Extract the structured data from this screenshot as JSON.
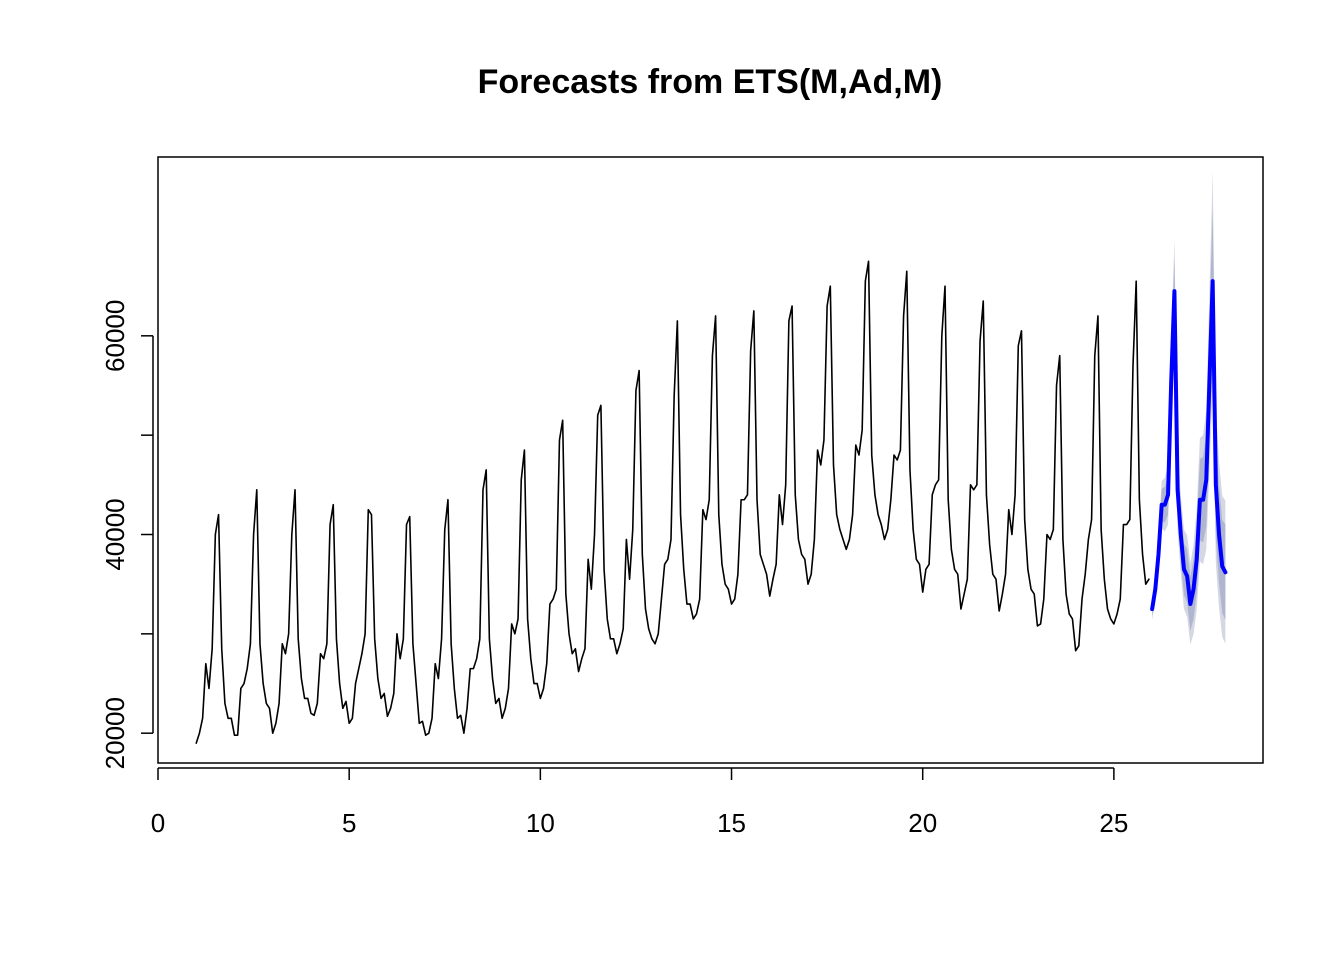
{
  "chart_data": {
    "type": "line",
    "title": "Forecasts from ETS(M,Ad,M)",
    "xlabel": "",
    "ylabel": "",
    "xlim": [
      0,
      28.9
    ],
    "ylim": [
      17000,
      78000
    ],
    "x_ticks": [
      0,
      5,
      10,
      15,
      20,
      25
    ],
    "y_ticks": [
      20000,
      40000,
      60000
    ],
    "y_tick_labels": [
      "20000",
      "40000",
      "60000"
    ],
    "grid": false,
    "legend": "none",
    "series": [
      {
        "role": "observed",
        "color": "#000000",
        "start": 1,
        "frequency": 12,
        "values": [
          19000,
          20000,
          21500,
          27000,
          24500,
          28500,
          40000,
          42000,
          28500,
          23000,
          21500,
          21500,
          19800,
          19800,
          24500,
          25000,
          26500,
          29000,
          40000,
          44500,
          29000,
          25000,
          23000,
          22500,
          20000,
          21000,
          23000,
          29000,
          28000,
          30000,
          40000,
          44500,
          29500,
          25500,
          23500,
          23500,
          22000,
          21800,
          23000,
          28000,
          27500,
          29000,
          41000,
          43000,
          29500,
          25000,
          22500,
          23200,
          21000,
          21500,
          25000,
          26500,
          28000,
          30000,
          42500,
          42000,
          29500,
          25500,
          23500,
          24000,
          21700,
          22500,
          24000,
          30000,
          27500,
          29500,
          41000,
          41800,
          29000,
          25000,
          21000,
          21200,
          19800,
          20000,
          21500,
          27000,
          25500,
          29500,
          40500,
          43500,
          29000,
          24500,
          21500,
          21800,
          20000,
          22500,
          26500,
          26500,
          27500,
          29500,
          44500,
          46500,
          29500,
          25500,
          23000,
          23500,
          21500,
          22500,
          24500,
          31000,
          30000,
          31500,
          45500,
          48500,
          31500,
          27500,
          25000,
          25000,
          23500,
          24500,
          27000,
          33000,
          33500,
          34500,
          49500,
          51500,
          34000,
          30000,
          28000,
          28500,
          26200,
          27500,
          28500,
          37500,
          34500,
          40000,
          52000,
          53000,
          36500,
          31500,
          29500,
          29500,
          28000,
          29000,
          30500,
          39500,
          35500,
          40500,
          54500,
          56500,
          38000,
          32500,
          30500,
          29500,
          29000,
          30000,
          33500,
          37000,
          37500,
          39500,
          54000,
          61500,
          42000,
          36500,
          33000,
          33000,
          31500,
          32000,
          33500,
          42500,
          41500,
          43500,
          58000,
          62000,
          42000,
          37000,
          35000,
          34500,
          33000,
          33500,
          36000,
          43500,
          43500,
          44000,
          58500,
          62500,
          43500,
          38000,
          37000,
          36000,
          33800,
          35500,
          37000,
          44000,
          41000,
          45000,
          61500,
          63000,
          44000,
          39500,
          38000,
          37500,
          35000,
          36000,
          39500,
          48500,
          47000,
          49500,
          63000,
          65000,
          47000,
          42000,
          40500,
          39500,
          38500,
          39500,
          42000,
          49000,
          48000,
          50500,
          65500,
          67500,
          48000,
          44000,
          42000,
          41000,
          39500,
          40500,
          43500,
          48000,
          47500,
          48500,
          62000,
          66500,
          46500,
          40500,
          37500,
          37000,
          34200,
          36500,
          37000,
          44000,
          45000,
          45500,
          60000,
          65000,
          43500,
          38500,
          36500,
          36000,
          32500,
          34000,
          35500,
          45000,
          44500,
          45000,
          59500,
          63500,
          44000,
          39000,
          36000,
          35500,
          32300,
          34000,
          36000,
          42500,
          40000,
          44000,
          59000,
          60500,
          41500,
          36500,
          34500,
          34000,
          30800,
          31000,
          33500,
          40000,
          39500,
          40500,
          55000,
          58000,
          39500,
          34000,
          32000,
          31500,
          28300,
          28800,
          33500,
          36000,
          39500,
          41500,
          58000,
          62000,
          40500,
          35500,
          32500,
          31500,
          31000,
          32000,
          33500,
          41000,
          41000,
          41500,
          57000,
          65500,
          43500,
          38000,
          35000,
          35500
        ]
      },
      {
        "role": "forecast",
        "color": "#0000FF",
        "start": 26,
        "frequency": 12,
        "values": [
          32500,
          34500,
          38000,
          43000,
          43000,
          44000,
          55500,
          64500,
          44500,
          40000,
          36500,
          35800,
          33000,
          34500,
          37500,
          43500,
          43500,
          45500,
          55500,
          65500,
          45000,
          40000,
          36800,
          36200
        ]
      },
      {
        "role": "prediction-80",
        "color": "#B0B6D0",
        "start": 26,
        "frequency": 12,
        "lower": [
          31800,
          33600,
          36800,
          41400,
          41200,
          42000,
          52700,
          61000,
          41800,
          37400,
          33900,
          33100,
          30300,
          31500,
          34100,
          39400,
          39200,
          40800,
          49500,
          58100,
          39700,
          35100,
          32100,
          31400
        ],
        "upper": [
          33200,
          35400,
          39200,
          44600,
          44800,
          46000,
          58300,
          68000,
          47200,
          42600,
          39100,
          38500,
          35700,
          37500,
          40900,
          47600,
          47800,
          50200,
          61500,
          72900,
          50300,
          44900,
          41500,
          41000
        ]
      },
      {
        "role": "prediction-95",
        "color": "#D5D8E3",
        "start": 26,
        "frequency": 12,
        "lower": [
          31400,
          33100,
          36100,
          40600,
          40300,
          41000,
          51300,
          59200,
          40300,
          36000,
          32500,
          31700,
          28900,
          30000,
          32400,
          37300,
          37000,
          38500,
          46500,
          54400,
          37100,
          32600,
          29700,
          29000
        ],
        "upper": [
          33600,
          35900,
          39900,
          45400,
          45700,
          47000,
          59700,
          69800,
          48700,
          44000,
          40500,
          39900,
          37100,
          39000,
          42600,
          49700,
          50000,
          52500,
          64500,
          76600,
          52900,
          47400,
          43900,
          43400
        ]
      }
    ]
  }
}
